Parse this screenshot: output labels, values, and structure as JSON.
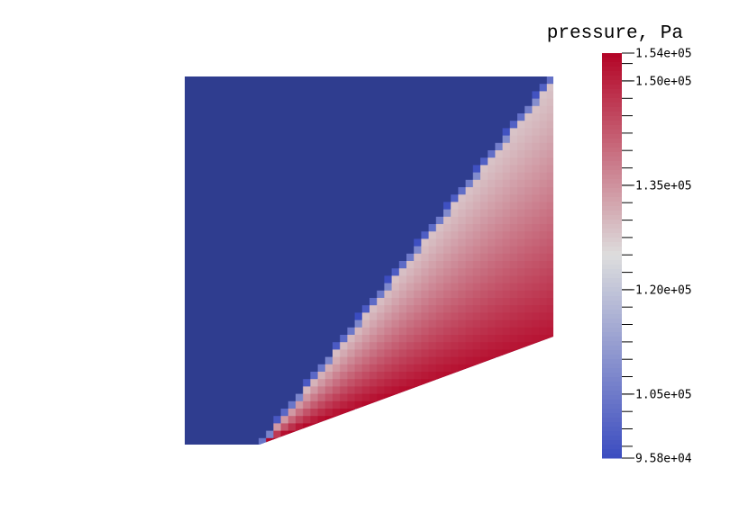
{
  "chart_data": {
    "type": "heatmap",
    "title": "pressure, Pa",
    "colormap": "coolwarm",
    "value_range": [
      95800,
      154000
    ],
    "colorbar_placement": "right",
    "colorbar_labels": [
      "1.54e+05",
      "1.50e+05",
      "1.35e+05",
      "1.20e+05",
      "1.05e+05",
      "9.58e+04"
    ],
    "colorbar_label_values": [
      154000,
      150000,
      135000,
      120000,
      105000,
      95800
    ],
    "minor_tick_step": 2500,
    "colors": {
      "low": "#3b4cc0",
      "mid": "#dddddd",
      "high": "#b40426",
      "freestream": "#2f3d8f"
    },
    "field": {
      "freestream_pressure": 95800,
      "wedge_start_pressure": 154000,
      "wedge_end_pressure": 152000,
      "shock_front_pressure": 128000,
      "shock_transition_pressure": 110000
    }
  }
}
